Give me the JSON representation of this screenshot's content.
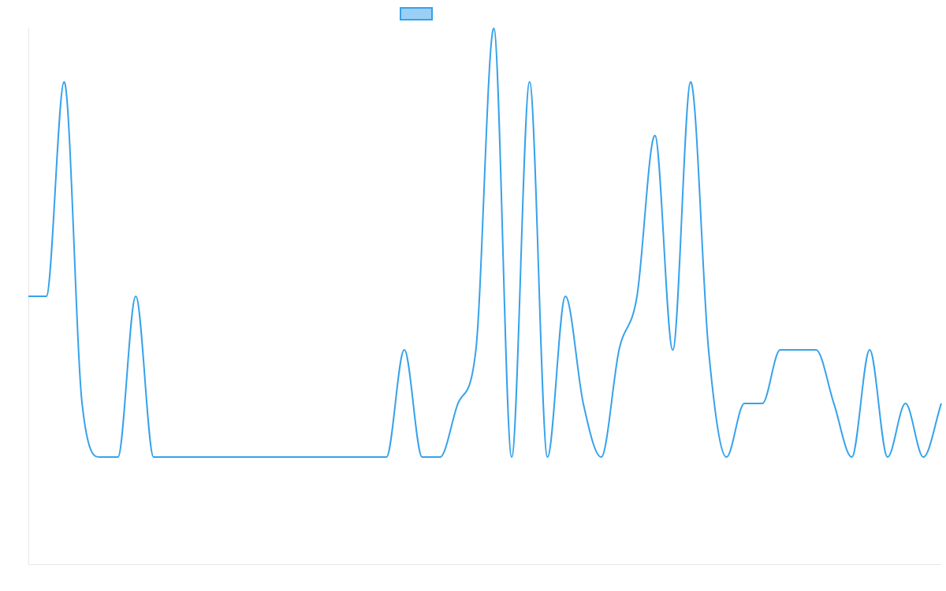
{
  "chart_data": {
    "type": "line",
    "title": "",
    "xlabel": "",
    "ylabel": "",
    "ylim": [
      -2,
      8
    ],
    "grid": false,
    "legend_position": "top",
    "x": [
      0,
      1,
      2,
      3,
      4,
      5,
      6,
      7,
      8,
      9,
      10,
      11,
      12,
      13,
      14,
      15,
      16,
      17,
      18,
      19,
      20,
      21,
      22,
      23,
      24,
      25,
      26,
      27,
      28,
      29,
      30,
      31,
      32,
      33,
      34,
      35,
      36,
      37,
      38,
      39,
      40,
      41,
      42,
      43,
      44,
      45,
      46,
      47,
      48,
      49,
      50,
      51
    ],
    "series": [
      {
        "name": "",
        "color": "#36a2eb",
        "fill": "#9ad0f5",
        "values": [
          3,
          3,
          7,
          1,
          0,
          0,
          3,
          0,
          0,
          0,
          0,
          0,
          0,
          0,
          0,
          0,
          0,
          0,
          0,
          0,
          0,
          2,
          0,
          0,
          1,
          2,
          8,
          0,
          7,
          0,
          3,
          1,
          0,
          2,
          3,
          6,
          2,
          7,
          2,
          0,
          1,
          1,
          2,
          2,
          2,
          1,
          0,
          2,
          0,
          1,
          0,
          1
        ]
      }
    ]
  }
}
